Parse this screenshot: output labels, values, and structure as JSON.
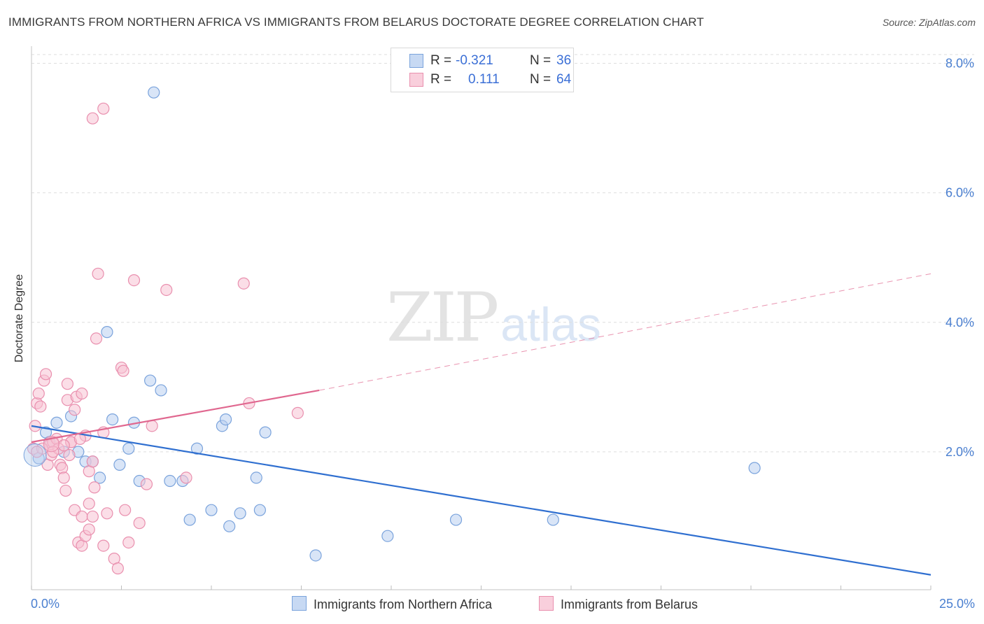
{
  "header": {
    "title": "IMMIGRANTS FROM NORTHERN AFRICA VS IMMIGRANTS FROM BELARUS DOCTORATE DEGREE CORRELATION CHART",
    "source": "Source: ZipAtlas.com"
  },
  "watermark": {
    "zip": "ZIP",
    "atlas": "atlas"
  },
  "legend": {
    "r_label": "R =",
    "n_label": "N =",
    "series1_r": "-0.321",
    "series1_n": "36",
    "series2_r": "0.111",
    "series2_n": "64"
  },
  "bottom_legend": {
    "series1": "Immigrants from Northern Africa",
    "series2": "Immigrants from Belarus"
  },
  "colors": {
    "blue_fill": "#b9d0f0",
    "blue_stroke": "#7aa3dc",
    "blue_line": "#2f6fd0",
    "pink_fill": "#f7c3d3",
    "pink_stroke": "#e98fae",
    "pink_line": "#e0678f",
    "tick_text": "#4a7fd0"
  },
  "chart_data": {
    "type": "scatter",
    "title": "IMMIGRANTS FROM NORTHERN AFRICA VS IMMIGRANTS FROM BELARUS DOCTORATE DEGREE CORRELATION CHART",
    "xlabel": "",
    "ylabel": "Doctorate Degree",
    "xlim": [
      0,
      25
    ],
    "ylim": [
      0,
      8.2
    ],
    "x_tick_labels": [
      "0.0%",
      "25.0%"
    ],
    "y_ticks": [
      2.0,
      4.0,
      6.0,
      8.0
    ],
    "y_tick_labels": [
      "2.0%",
      "4.0%",
      "6.0%",
      "8.0%"
    ],
    "grid": true,
    "series": [
      {
        "name": "Immigrants from Northern Africa",
        "color": "blue",
        "points": [
          [
            0.2,
            1.9
          ],
          [
            0.4,
            2.3
          ],
          [
            0.5,
            2.15
          ],
          [
            0.7,
            2.45
          ],
          [
            0.9,
            2.0
          ],
          [
            1.1,
            2.55
          ],
          [
            1.3,
            2.0
          ],
          [
            1.5,
            1.85
          ],
          [
            1.7,
            1.85
          ],
          [
            1.9,
            1.6
          ],
          [
            2.1,
            3.85
          ],
          [
            2.25,
            2.5
          ],
          [
            2.45,
            1.8
          ],
          [
            2.7,
            2.05
          ],
          [
            2.85,
            2.45
          ],
          [
            3.0,
            1.55
          ],
          [
            3.3,
            3.1
          ],
          [
            3.6,
            2.95
          ],
          [
            3.85,
            1.55
          ],
          [
            4.2,
            1.55
          ],
          [
            4.4,
            0.95
          ],
          [
            4.6,
            2.05
          ],
          [
            5.0,
            1.1
          ],
          [
            5.3,
            2.4
          ],
          [
            5.4,
            2.5
          ],
          [
            5.5,
            0.85
          ],
          [
            5.8,
            1.05
          ],
          [
            6.25,
            1.6
          ],
          [
            6.35,
            1.1
          ],
          [
            6.5,
            2.3
          ],
          [
            7.9,
            0.4
          ],
          [
            9.9,
            0.7
          ],
          [
            11.8,
            0.95
          ],
          [
            14.5,
            0.95
          ],
          [
            20.1,
            1.75
          ],
          [
            3.4,
            7.55
          ]
        ]
      },
      {
        "name": "Immigrants from Belarus",
        "color": "pink",
        "points": [
          [
            0.05,
            2.05
          ],
          [
            0.1,
            2.4
          ],
          [
            0.15,
            2.75
          ],
          [
            0.2,
            2.9
          ],
          [
            0.25,
            2.7
          ],
          [
            0.35,
            3.1
          ],
          [
            0.4,
            3.2
          ],
          [
            0.45,
            1.8
          ],
          [
            0.5,
            2.1
          ],
          [
            0.55,
            1.95
          ],
          [
            0.6,
            2.15
          ],
          [
            0.7,
            2.2
          ],
          [
            0.75,
            2.05
          ],
          [
            0.8,
            1.8
          ],
          [
            0.85,
            1.75
          ],
          [
            0.9,
            1.6
          ],
          [
            0.95,
            1.4
          ],
          [
            1.0,
            2.8
          ],
          [
            1.05,
            1.95
          ],
          [
            1.1,
            2.15
          ],
          [
            1.0,
            3.05
          ],
          [
            1.2,
            2.65
          ],
          [
            1.25,
            2.85
          ],
          [
            1.4,
            2.9
          ],
          [
            1.5,
            2.25
          ],
          [
            1.6,
            1.7
          ],
          [
            1.7,
            1.85
          ],
          [
            1.75,
            1.45
          ],
          [
            1.3,
            0.6
          ],
          [
            1.4,
            0.55
          ],
          [
            1.5,
            0.7
          ],
          [
            1.6,
            0.8
          ],
          [
            1.2,
            1.1
          ],
          [
            1.4,
            1.0
          ],
          [
            1.6,
            1.2
          ],
          [
            1.7,
            1.0
          ],
          [
            1.8,
            3.75
          ],
          [
            1.85,
            4.75
          ],
          [
            1.7,
            7.15
          ],
          [
            2.0,
            7.3
          ],
          [
            2.0,
            0.55
          ],
          [
            2.1,
            1.05
          ],
          [
            2.3,
            0.35
          ],
          [
            2.4,
            0.2
          ],
          [
            2.5,
            3.3
          ],
          [
            2.55,
            3.25
          ],
          [
            2.6,
            1.1
          ],
          [
            2.7,
            0.6
          ],
          [
            2.85,
            4.65
          ],
          [
            3.0,
            0.9
          ],
          [
            3.2,
            1.5
          ],
          [
            3.35,
            2.4
          ],
          [
            3.75,
            4.5
          ],
          [
            4.3,
            1.6
          ],
          [
            5.9,
            4.6
          ],
          [
            6.05,
            2.75
          ],
          [
            7.4,
            2.6
          ],
          [
            1.1,
            2.15
          ],
          [
            0.6,
            2.0
          ],
          [
            0.3,
            2.05
          ],
          [
            1.35,
            2.2
          ],
          [
            2.0,
            2.3
          ],
          [
            0.9,
            2.1
          ],
          [
            0.15,
            2.0
          ]
        ]
      }
    ],
    "trend_lines": [
      {
        "series": "Immigrants from Northern Africa",
        "x": [
          0,
          25
        ],
        "y": [
          2.4,
          0.1
        ],
        "style": "solid"
      },
      {
        "series": "Immigrants from Belarus",
        "x": [
          0,
          8
        ],
        "y": [
          2.15,
          2.95
        ],
        "style": "solid"
      },
      {
        "series": "Immigrants from Belarus",
        "x": [
          8,
          25
        ],
        "y": [
          2.95,
          4.75
        ],
        "style": "dashed"
      }
    ]
  }
}
